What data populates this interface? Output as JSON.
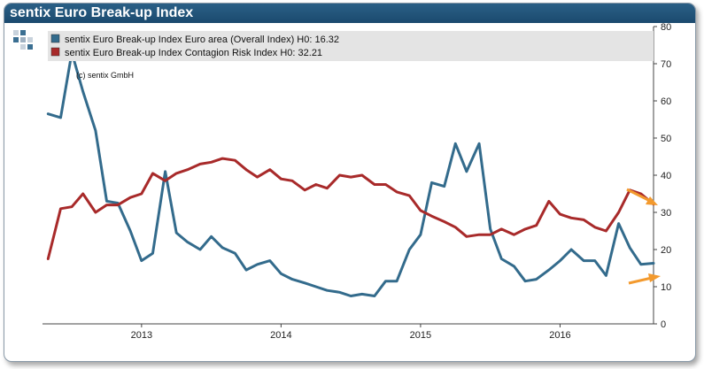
{
  "title": "sentix Euro Break-up Index",
  "colors": {
    "header": "#1f5277",
    "blue": "#336b8c",
    "red": "#a82a2a",
    "arrow": "#f39a2e"
  },
  "chart_data": {
    "type": "line",
    "copyright": "(c) sentix GmbH",
    "ylim": [
      0,
      80
    ],
    "y_ticks": [
      0,
      10,
      20,
      30,
      40,
      50,
      60,
      70,
      80
    ],
    "x_range": [
      2012.29,
      2016.67
    ],
    "x_ticks": [
      {
        "value": 2013,
        "label": "2013"
      },
      {
        "value": 2014,
        "label": "2014"
      },
      {
        "value": 2015,
        "label": "2015"
      },
      {
        "value": 2016,
        "label": "2016"
      }
    ],
    "grid": false,
    "legend": "top",
    "annotations": [
      "orange arrow pointing at red series end",
      "orange arrow pointing at blue series end"
    ],
    "series": [
      {
        "name": "sentix Euro Break-up Index Euro area (Overall Index) H0: 16.32",
        "color": "#336b8c",
        "x": [
          2012.33,
          2012.42,
          2012.5,
          2012.58,
          2012.67,
          2012.75,
          2012.83,
          2012.92,
          2013.0,
          2013.08,
          2013.17,
          2013.25,
          2013.33,
          2013.42,
          2013.5,
          2013.58,
          2013.67,
          2013.75,
          2013.83,
          2013.92,
          2014.0,
          2014.08,
          2014.17,
          2014.25,
          2014.33,
          2014.42,
          2014.5,
          2014.58,
          2014.67,
          2014.75,
          2014.83,
          2014.92,
          2015.0,
          2015.08,
          2015.17,
          2015.25,
          2015.33,
          2015.42,
          2015.5,
          2015.58,
          2015.67,
          2015.75,
          2015.83,
          2015.92,
          2016.0,
          2016.08,
          2016.17,
          2016.25,
          2016.33,
          2016.42,
          2016.5,
          2016.58,
          2016.67
        ],
        "y": [
          56.5,
          55.5,
          73.0,
          62.5,
          52.0,
          33.0,
          32.5,
          25.0,
          17.0,
          19.0,
          41.0,
          24.5,
          22.0,
          20.0,
          23.5,
          20.5,
          19.0,
          14.5,
          16.0,
          17.0,
          13.5,
          12.0,
          11.0,
          10.0,
          9.0,
          8.5,
          7.5,
          8.0,
          7.5,
          11.5,
          11.5,
          20.0,
          24.0,
          38.0,
          37.0,
          48.5,
          41.0,
          48.5,
          25.5,
          17.5,
          15.5,
          11.5,
          12.0,
          14.5,
          17.0,
          20.0,
          17.0,
          17.0,
          13.0,
          27.0,
          20.5,
          16.0,
          16.3
        ]
      },
      {
        "name": "sentix Euro Break-up Index Contagion Risk Index H0: 32.21",
        "color": "#a82a2a",
        "x": [
          2012.33,
          2012.42,
          2012.5,
          2012.58,
          2012.67,
          2012.75,
          2012.83,
          2012.92,
          2013.0,
          2013.08,
          2013.17,
          2013.25,
          2013.33,
          2013.42,
          2013.5,
          2013.58,
          2013.67,
          2013.75,
          2013.83,
          2013.92,
          2014.0,
          2014.08,
          2014.17,
          2014.25,
          2014.33,
          2014.42,
          2014.5,
          2014.58,
          2014.67,
          2014.75,
          2014.83,
          2014.92,
          2015.0,
          2015.08,
          2015.17,
          2015.25,
          2015.33,
          2015.42,
          2015.5,
          2015.58,
          2015.67,
          2015.75,
          2015.83,
          2015.92,
          2016.0,
          2016.08,
          2016.17,
          2016.25,
          2016.33,
          2016.42,
          2016.5,
          2016.58,
          2016.67
        ],
        "y": [
          17.5,
          31.0,
          31.5,
          35.0,
          30.0,
          32.0,
          32.0,
          34.0,
          35.0,
          40.5,
          38.5,
          40.5,
          41.5,
          43.0,
          43.5,
          44.5,
          44.0,
          41.5,
          39.5,
          41.5,
          39.0,
          38.5,
          36.0,
          37.5,
          36.5,
          40.0,
          39.5,
          40.0,
          37.5,
          37.5,
          35.5,
          34.5,
          30.5,
          29.0,
          27.5,
          26.0,
          23.5,
          24.0,
          24.0,
          25.5,
          24.0,
          25.5,
          26.5,
          33.0,
          29.5,
          28.5,
          28.0,
          26.0,
          25.0,
          30.0,
          36.0,
          35.0,
          32.2
        ]
      }
    ]
  }
}
